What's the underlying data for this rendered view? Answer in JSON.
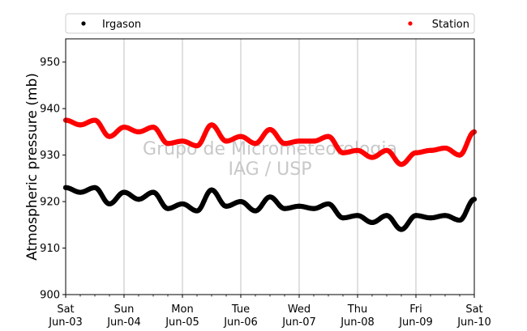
{
  "chart_data": {
    "type": "scatter",
    "title": "",
    "xlabel": "",
    "ylabel": "Atmospheric pressure (mb)",
    "ylim": [
      900,
      955
    ],
    "yticks": [
      900,
      910,
      920,
      930,
      940,
      950
    ],
    "x_range": [
      "2023-06-03T00:00",
      "2023-06-10T00:00"
    ],
    "x_ticks": [
      {
        "day": "Sat",
        "date": "Jun-03"
      },
      {
        "day": "Sun",
        "date": "Jun-04"
      },
      {
        "day": "Mon",
        "date": "Jun-05"
      },
      {
        "day": "Tue",
        "date": "Jun-06"
      },
      {
        "day": "Wed",
        "date": "Jun-07"
      },
      {
        "day": "Thu",
        "date": "Jun-08"
      },
      {
        "day": "Fri",
        "date": "Jun-09"
      },
      {
        "day": "Sat",
        "date": "Jun-10"
      }
    ],
    "vertical_grid": true,
    "legend_position": "top",
    "watermark": [
      "Grupo de Micrometeorologia",
      "IAG / USP"
    ],
    "series": [
      {
        "name": "Irgason",
        "color": "#000000",
        "x": [
          "2023-06-03T00:00",
          "2023-06-03T06:00",
          "2023-06-03T12:00",
          "2023-06-03T18:00",
          "2023-06-04T00:00",
          "2023-06-04T06:00",
          "2023-06-04T12:00",
          "2023-06-04T18:00",
          "2023-06-05T00:00",
          "2023-06-05T06:00",
          "2023-06-05T12:00",
          "2023-06-05T18:00",
          "2023-06-06T00:00",
          "2023-06-06T06:00",
          "2023-06-06T12:00",
          "2023-06-06T18:00",
          "2023-06-07T00:00",
          "2023-06-07T06:00",
          "2023-06-07T12:00",
          "2023-06-07T18:00",
          "2023-06-08T00:00",
          "2023-06-08T06:00",
          "2023-06-08T12:00",
          "2023-06-08T18:00",
          "2023-06-09T00:00",
          "2023-06-09T06:00",
          "2023-06-09T12:00",
          "2023-06-09T18:00",
          "2023-06-10T00:00"
        ],
        "y": [
          923.0,
          922.0,
          923.0,
          919.5,
          922.0,
          920.5,
          922.0,
          918.5,
          919.5,
          918.0,
          922.5,
          919.0,
          920.0,
          918.0,
          921.0,
          918.5,
          919.0,
          918.5,
          919.5,
          916.5,
          917.0,
          915.5,
          917.0,
          914.0,
          917.0,
          916.5,
          917.0,
          916.0,
          920.5
        ]
      },
      {
        "name": "Station",
        "color": "#ff0000",
        "x": [
          "2023-06-03T00:00",
          "2023-06-03T06:00",
          "2023-06-03T12:00",
          "2023-06-03T18:00",
          "2023-06-04T00:00",
          "2023-06-04T06:00",
          "2023-06-04T12:00",
          "2023-06-04T18:00",
          "2023-06-05T00:00",
          "2023-06-05T06:00",
          "2023-06-05T12:00",
          "2023-06-05T18:00",
          "2023-06-06T00:00",
          "2023-06-06T06:00",
          "2023-06-06T12:00",
          "2023-06-06T18:00",
          "2023-06-07T00:00",
          "2023-06-07T06:00",
          "2023-06-07T12:00",
          "2023-06-07T18:00",
          "2023-06-08T00:00",
          "2023-06-08T06:00",
          "2023-06-08T12:00",
          "2023-06-08T18:00",
          "2023-06-09T00:00",
          "2023-06-09T06:00",
          "2023-06-09T12:00",
          "2023-06-09T18:00",
          "2023-06-10T00:00"
        ],
        "y": [
          937.5,
          936.5,
          937.5,
          934.0,
          936.0,
          935.0,
          936.0,
          932.5,
          933.0,
          932.0,
          936.5,
          933.0,
          934.0,
          932.5,
          935.5,
          932.5,
          933.0,
          933.0,
          934.0,
          930.5,
          931.0,
          929.5,
          931.0,
          928.0,
          930.5,
          931.0,
          931.5,
          930.0,
          935.0
        ]
      }
    ]
  }
}
